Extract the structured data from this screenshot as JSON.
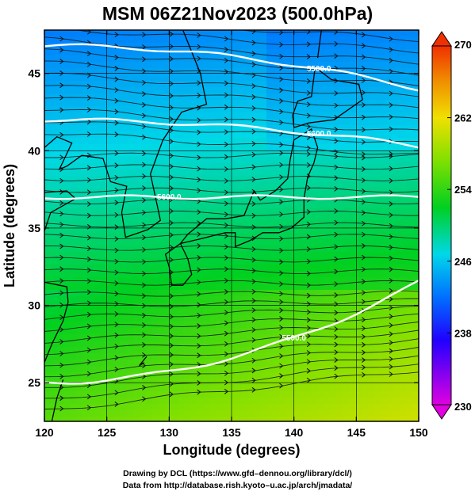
{
  "chart_data": {
    "type": "heatmap",
    "title": "MSM 06Z21Nov2023 (500.0hPa)",
    "xlabel": "Longitude (degrees)",
    "ylabel": "Latitude  (degrees)",
    "xlim": [
      120,
      150
    ],
    "ylim": [
      22.5,
      47.8
    ],
    "xticks": [
      120,
      125,
      130,
      135,
      140,
      145,
      150
    ],
    "yticks": [
      25,
      30,
      35,
      40,
      45
    ],
    "colorbar": {
      "ticks": [
        230,
        238,
        246,
        254,
        262,
        270
      ],
      "range": [
        230,
        270
      ],
      "colors": [
        "#d800d8",
        "#0018ff",
        "#00d8e8",
        "#00d800",
        "#f0e000",
        "#f04000"
      ]
    },
    "contours": [
      {
        "label": "5500.0",
        "lat_west": 25.0,
        "lat_east": 31.5
      },
      {
        "label": "5600.0",
        "lat_west": 37.0,
        "lat_east": 37.0
      },
      {
        "label": "5600.0",
        "lat_west": 42.0,
        "lat_east": 40.3
      },
      {
        "label": "5500.0",
        "lat_west": 46.8,
        "lat_east": 44.0
      }
    ],
    "wind_field": "streamlines, predominantly westerly",
    "temperature_field": "colored shading from ~252 (north) to ~268 (southeast)"
  },
  "footer": {
    "line1": "Drawing by DCL (https://www.gfd–dennou.org/library/dcl/)",
    "line2": "Data from http://database.rish.kyoto–u.ac.jp/arch/jmadata/"
  },
  "colors": {
    "frame": "#000000",
    "contour": "#ffffff",
    "coast": "#000000"
  }
}
